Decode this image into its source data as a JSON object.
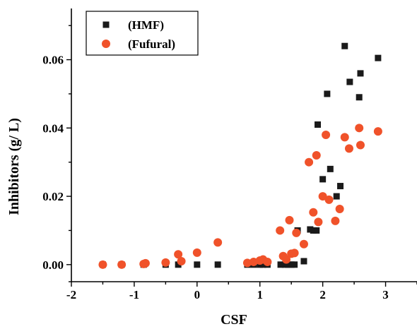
{
  "chart_data": {
    "type": "scatter",
    "title": "",
    "xlabel": "CSF",
    "ylabel": "Inhibitors (g/ L)",
    "xlim": [
      -2,
      3.5
    ],
    "ylim": [
      -0.005,
      0.075
    ],
    "xticks": [
      -2,
      -1,
      0,
      1,
      2,
      3
    ],
    "xtick_labels": [
      "-2",
      "-1",
      "0",
      "1",
      "2",
      "3"
    ],
    "yticks": [
      0.0,
      0.02,
      0.04,
      0.06
    ],
    "ytick_labels": [
      "0.00",
      "0.02",
      "0.04",
      "0.06"
    ],
    "grid": false,
    "legend_position": "top-left",
    "series": [
      {
        "name": "(HMF)",
        "marker": "square",
        "color": "#1a1a1a",
        "points": [
          [
            -1.5,
            0.0
          ],
          [
            -1.2,
            0.0
          ],
          [
            -0.85,
            0.0
          ],
          [
            -0.5,
            0.0
          ],
          [
            -0.3,
            0.0
          ],
          [
            0.0,
            0.0
          ],
          [
            0.33,
            0.0
          ],
          [
            0.8,
            0.0
          ],
          [
            0.9,
            0.0
          ],
          [
            1.0,
            0.0
          ],
          [
            1.05,
            0.0
          ],
          [
            1.12,
            0.0
          ],
          [
            1.33,
            0.0
          ],
          [
            1.4,
            0.0
          ],
          [
            1.45,
            0.0
          ],
          [
            1.5,
            0.0
          ],
          [
            1.55,
            0.0
          ],
          [
            1.6,
            0.01
          ],
          [
            1.7,
            0.001
          ],
          [
            1.8,
            0.0103
          ],
          [
            1.85,
            0.01
          ],
          [
            1.9,
            0.01
          ],
          [
            1.92,
            0.041
          ],
          [
            2.0,
            0.025
          ],
          [
            2.07,
            0.05
          ],
          [
            2.12,
            0.028
          ],
          [
            2.22,
            0.02
          ],
          [
            2.28,
            0.023
          ],
          [
            2.35,
            0.064
          ],
          [
            2.43,
            0.0535
          ],
          [
            2.58,
            0.049
          ],
          [
            2.6,
            0.056
          ],
          [
            2.88,
            0.0605
          ]
        ]
      },
      {
        "name": "(Fufural)",
        "marker": "circle",
        "color": "#f0522a",
        "points": [
          [
            -1.5,
            0.0
          ],
          [
            -1.2,
            0.0
          ],
          [
            -0.85,
            0.0002
          ],
          [
            -0.82,
            0.0004
          ],
          [
            -0.5,
            0.0006
          ],
          [
            -0.3,
            0.003
          ],
          [
            -0.25,
            0.001
          ],
          [
            0.0,
            0.0035
          ],
          [
            0.33,
            0.0065
          ],
          [
            0.8,
            0.0005
          ],
          [
            0.9,
            0.0008
          ],
          [
            1.0,
            0.0012
          ],
          [
            1.05,
            0.0015
          ],
          [
            1.12,
            0.0008
          ],
          [
            1.32,
            0.01
          ],
          [
            1.37,
            0.0025
          ],
          [
            1.42,
            0.0015
          ],
          [
            1.47,
            0.013
          ],
          [
            1.5,
            0.0032
          ],
          [
            1.55,
            0.0034
          ],
          [
            1.58,
            0.0093
          ],
          [
            1.7,
            0.006
          ],
          [
            1.78,
            0.03
          ],
          [
            1.85,
            0.0153
          ],
          [
            1.9,
            0.032
          ],
          [
            1.93,
            0.0125
          ],
          [
            2.0,
            0.02
          ],
          [
            2.05,
            0.038
          ],
          [
            2.1,
            0.019
          ],
          [
            2.2,
            0.0128
          ],
          [
            2.27,
            0.0163
          ],
          [
            2.35,
            0.0373
          ],
          [
            2.42,
            0.034
          ],
          [
            2.58,
            0.04
          ],
          [
            2.6,
            0.035
          ],
          [
            2.88,
            0.039
          ]
        ]
      }
    ]
  }
}
